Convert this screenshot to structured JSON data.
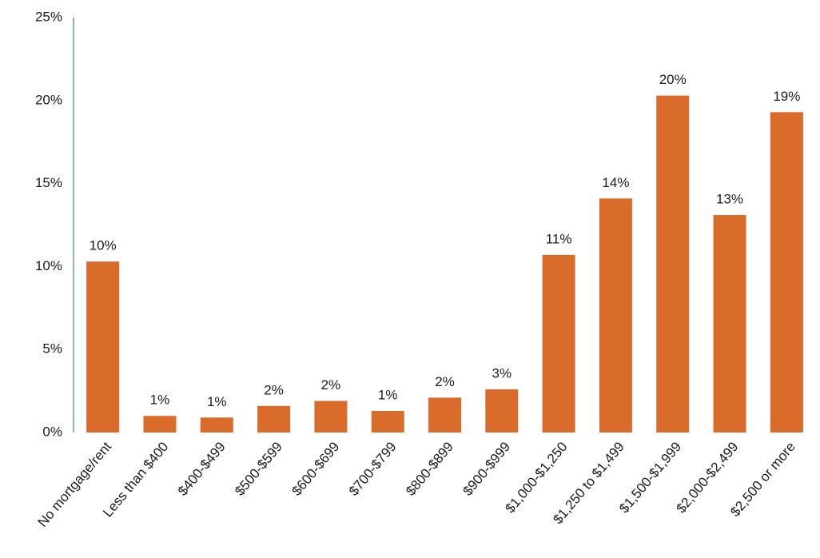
{
  "chart_data": {
    "type": "bar",
    "categories": [
      "No mortgage/rent",
      "Less than $400",
      "$400-$499",
      "$500-$599",
      "$600-$699",
      "$700-$799",
      "$800-$899",
      "$900-$999",
      "$1,000-$1,250",
      "$1,250 to $1,499",
      "$1,500-$1,999",
      "$2,000-$2,499",
      "$2,500 or more"
    ],
    "values": [
      10.3,
      1.0,
      0.9,
      1.6,
      1.9,
      1.3,
      2.1,
      2.6,
      10.7,
      14.1,
      20.3,
      13.1,
      19.3
    ],
    "value_labels": [
      "10%",
      "1%",
      "1%",
      "2%",
      "2%",
      "1%",
      "2%",
      "3%",
      "11%",
      "14%",
      "20%",
      "13%",
      "19%"
    ],
    "color": "#d96b2b",
    "ylim": [
      0,
      25
    ],
    "yticks": [
      {
        "value": 0,
        "label": "0%"
      },
      {
        "value": 5,
        "label": "5%"
      },
      {
        "value": 10,
        "label": "10%"
      },
      {
        "value": 15,
        "label": "15%"
      },
      {
        "value": 20,
        "label": "20%"
      },
      {
        "value": 25,
        "label": "25%"
      }
    ],
    "grid": false
  }
}
